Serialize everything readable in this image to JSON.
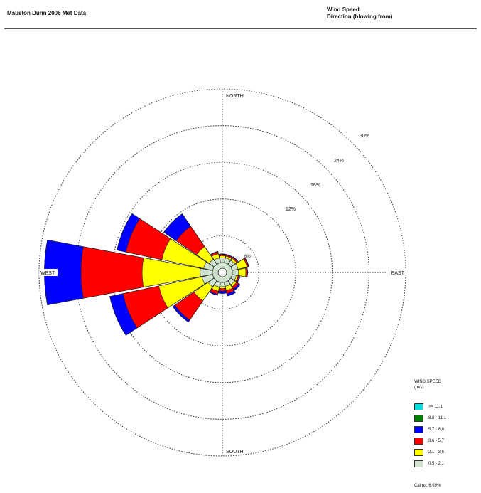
{
  "header": {
    "left_title": "Mauston Dunn 2006 Met Data",
    "right_line1": "Wind Speed",
    "right_line2": "Direction (blowing from)"
  },
  "chart_data": {
    "type": "wind-rose",
    "directions": [
      "N",
      "NNE",
      "NE",
      "ENE",
      "E",
      "ESE",
      "SE",
      "SSE",
      "S",
      "SSW",
      "SW",
      "WSW",
      "W",
      "WNW",
      "NW",
      "NNW"
    ],
    "direction_labels": {
      "north": "NORTH",
      "south": "SOUTH",
      "east": "EAST",
      "west": "WEST"
    },
    "rings_percent": [
      6,
      12,
      18,
      24,
      30
    ],
    "ring_labels": [
      "6%",
      "12%",
      "18%",
      "24%",
      "30%"
    ],
    "legend_title": "WIND SPEED",
    "legend_unit": "(m/s)",
    "speed_bins": [
      {
        "label": "0.5 - 2.1",
        "color": "#cfe3cf"
      },
      {
        "label": "2.1 - 3.6",
        "color": "#ffff00"
      },
      {
        "label": "3.6 - 5.7",
        "color": "#ff0000"
      },
      {
        "label": "5.7 - 8.8",
        "color": "#0000ff"
      },
      {
        "label": "8.8 - 11.1",
        "color": "#008000"
      },
      {
        "label": ">= 11.1",
        "color": "#00e0e0"
      }
    ],
    "sector_cumulative_percent": {
      "N": [
        0.8,
        1.1,
        1.3,
        1.4,
        1.4,
        1.4
      ],
      "NNE": [
        0.8,
        1.1,
        1.3,
        1.4,
        1.4,
        1.4
      ],
      "NE": [
        0.8,
        1.2,
        1.4,
        1.5,
        1.5,
        1.5
      ],
      "ENE": [
        1.0,
        2.5,
        2.7,
        2.8,
        2.8,
        2.8
      ],
      "E": [
        1.0,
        2.2,
        2.4,
        2.5,
        2.5,
        2.5
      ],
      "ESE": [
        0.7,
        1.0,
        1.2,
        1.3,
        1.3,
        1.3
      ],
      "SE": [
        0.8,
        1.2,
        1.6,
        1.9,
        1.9,
        1.9
      ],
      "SSE": [
        0.7,
        1.4,
        1.9,
        2.3,
        2.3,
        2.3
      ],
      "S": [
        0.7,
        1.0,
        1.4,
        1.8,
        1.8,
        1.8
      ],
      "SSW": [
        0.8,
        1.5,
        2.0,
        2.2,
        2.2,
        2.2
      ],
      "SW": [
        1.2,
        4.0,
        7.8,
        8.2,
        8.2,
        8.2
      ],
      "WSW": [
        1.8,
        9.0,
        15.0,
        17.2,
        17.2,
        17.2
      ],
      "W": [
        2.0,
        11.5,
        21.5,
        27.5,
        27.5,
        27.5
      ],
      "WNW": [
        1.5,
        8.5,
        14.5,
        16.0,
        16.0,
        16.0
      ],
      "NW": [
        1.0,
        3.5,
        7.5,
        10.0,
        10.0,
        10.0
      ],
      "NNW": [
        0.8,
        1.5,
        1.8,
        1.9,
        1.9,
        1.9
      ]
    },
    "calms": "Calms: 6.69%"
  }
}
